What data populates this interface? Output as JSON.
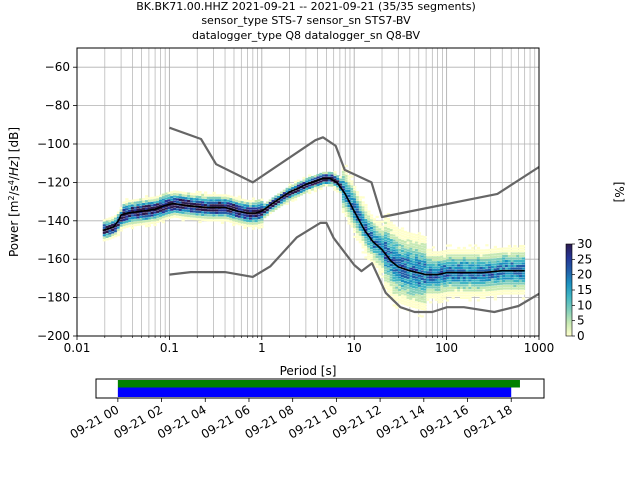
{
  "title_lines": [
    "BK.BK71.00.HHZ   2021-09-21 -- 2021-09-21  (35/35 segments)",
    "sensor_type STS-7 sensor_sn STS7-BV",
    "datalogger_type Q8 datalogger_sn Q8-BV"
  ],
  "chart_data": [
    {
      "type": "heatmap",
      "title": "BK.BK71.00.HHZ   2021-09-21 -- 2021-09-21  (35/35 segments)",
      "xlabel": "Period [s]",
      "ylabel": "Power [m²/s⁴/Hz] [dB]",
      "xscale": "log",
      "xlim": [
        0.01,
        1000
      ],
      "ylim": [
        -200,
        -50
      ],
      "xtick_labels": [
        "0.01",
        "0.1",
        "1",
        "10",
        "100",
        "1000"
      ],
      "xtick_values": [
        0.01,
        0.1,
        1,
        10,
        100,
        1000
      ],
      "ytick_values": [
        -60,
        -80,
        -100,
        -120,
        -140,
        -160,
        -180,
        -200
      ],
      "ytick_labels": [
        "−60",
        "−80",
        "−100",
        "−120",
        "−140",
        "−160",
        "−180",
        "−200"
      ],
      "grid": true,
      "colorbar": {
        "label": "[%]",
        "range": [
          0,
          30
        ],
        "tick_values": [
          0,
          5,
          10,
          15,
          20,
          25,
          30
        ],
        "tick_labels": [
          "0",
          "5",
          "10",
          "15",
          "20",
          "25",
          "30"
        ],
        "colormap": [
          "#ffffcc",
          "#c7e9b4",
          "#7fcdbb",
          "#41b6c4",
          "#1d91c0",
          "#225ea8",
          "#253494",
          "#2d1b4e"
        ]
      },
      "series": [
        {
          "role": "mean",
          "color": "#000000",
          "points": [
            [
              0.019,
              -145
            ],
            [
              0.022,
              -144
            ],
            [
              0.025,
              -143
            ],
            [
              0.028,
              -140
            ],
            [
              0.03,
              -137
            ],
            [
              0.035,
              -136
            ],
            [
              0.05,
              -135
            ],
            [
              0.07,
              -134
            ],
            [
              0.09,
              -132
            ],
            [
              0.11,
              -131
            ],
            [
              0.15,
              -132
            ],
            [
              0.25,
              -133
            ],
            [
              0.4,
              -133
            ],
            [
              0.55,
              -135
            ],
            [
              0.7,
              -136
            ],
            [
              0.85,
              -136
            ],
            [
              1.0,
              -135
            ],
            [
              1.3,
              -131
            ],
            [
              1.6,
              -128
            ],
            [
              2.0,
              -125
            ],
            [
              2.5,
              -123
            ],
            [
              3.0,
              -121
            ],
            [
              3.5,
              -120
            ],
            [
              4.5,
              -118
            ],
            [
              5.5,
              -118
            ],
            [
              6.5,
              -120
            ],
            [
              8.0,
              -126
            ],
            [
              10,
              -135
            ],
            [
              13,
              -145
            ],
            [
              16,
              -151
            ],
            [
              20,
              -155
            ],
            [
              25,
              -161
            ],
            [
              30,
              -164
            ],
            [
              40,
              -166
            ],
            [
              60,
              -168
            ],
            [
              80,
              -168
            ],
            [
              100,
              -167
            ],
            [
              150,
              -167
            ],
            [
              250,
              -167
            ],
            [
              400,
              -166
            ],
            [
              700,
              -166
            ]
          ]
        },
        {
          "role": "high-noise-model",
          "color": "#666666",
          "points": [
            [
              0.1,
              -91.5
            ],
            [
              0.22,
              -97.4
            ],
            [
              0.32,
              -110.5
            ],
            [
              0.8,
              -120
            ],
            [
              3.8,
              -98
            ],
            [
              4.6,
              -96.5
            ],
            [
              6.3,
              -101
            ],
            [
              7.9,
              -113.5
            ],
            [
              15.4,
              -120
            ],
            [
              20,
              -138
            ],
            [
              354.8,
              -126
            ],
            [
              1000,
              -112
            ]
          ]
        },
        {
          "role": "low-noise-model",
          "color": "#666666",
          "points": [
            [
              0.1,
              -168
            ],
            [
              0.17,
              -166.7
            ],
            [
              0.4,
              -166.7
            ],
            [
              0.8,
              -169.2
            ],
            [
              1.24,
              -163.7
            ],
            [
              2.4,
              -148.6
            ],
            [
              4.3,
              -141.1
            ],
            [
              5.0,
              -141.1
            ],
            [
              6.0,
              -149
            ],
            [
              10.0,
              -163
            ],
            [
              12.0,
              -166.2
            ],
            [
              15.6,
              -162.1
            ],
            [
              21.9,
              -177.5
            ],
            [
              31.6,
              -185
            ],
            [
              45,
              -187.5
            ],
            [
              70,
              -187.5
            ],
            [
              101,
              -185
            ],
            [
              154,
              -185
            ],
            [
              328,
              -187.5
            ],
            [
              600,
              -184.4
            ],
            [
              1000,
              -178
            ]
          ]
        }
      ]
    },
    {
      "type": "timeline",
      "xlabel": "",
      "tick_labels": [
        "09-21 00",
        "09-21 02",
        "09-21 04",
        "09-21 06",
        "09-21 08",
        "09-21 10",
        "09-21 12",
        "09-21 14",
        "09-21 16",
        "09-21 18"
      ],
      "tick_hours": [
        0,
        2,
        4,
        6,
        8,
        10,
        12,
        14,
        16,
        18
      ],
      "xlim_hours": [
        -1,
        19.5
      ],
      "bars": [
        {
          "name": "data-availability",
          "color": "#008000",
          "start_hour": 0,
          "end_hour": 18.4
        },
        {
          "name": "processed-segments",
          "color": "#0000ff",
          "start_hour": 0,
          "end_hour": 18.0
        }
      ]
    }
  ]
}
